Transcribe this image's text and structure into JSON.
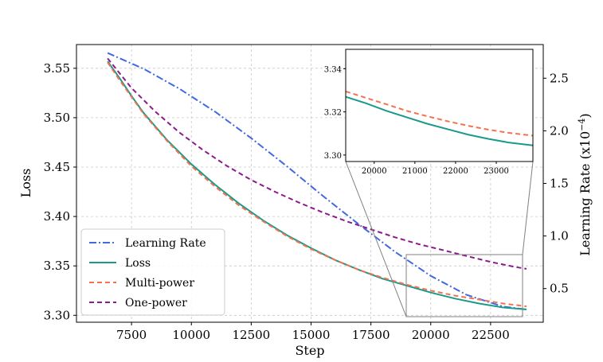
{
  "chart_data": {
    "type": "line",
    "xlabel": "Step",
    "ylabel": "Loss",
    "y2label": "Learning Rate (x10",
    "y2label_exp": "−4",
    "y2label_close": ")",
    "xlim": [
      5200,
      24700
    ],
    "ylim": [
      3.293,
      3.574
    ],
    "y2lim": [
      0.18,
      2.82
    ],
    "xticks": [
      7500,
      10000,
      12500,
      15000,
      17500,
      20000,
      22500
    ],
    "yticks": [
      3.3,
      3.35,
      3.4,
      3.45,
      3.5,
      3.55
    ],
    "y2ticks": [
      0.5,
      1.0,
      1.5,
      2.0,
      2.5
    ],
    "grid": true,
    "legend_position": "lower-left",
    "series": [
      {
        "name": "Learning Rate",
        "axis": "right",
        "color": "#4169e1",
        "style": "dashdot",
        "x": [
          6500,
          8000,
          9500,
          11000,
          12500,
          14000,
          15500,
          17000,
          18500,
          20000,
          21500,
          23000,
          24000
        ],
        "y": [
          2.74,
          2.59,
          2.4,
          2.18,
          1.93,
          1.66,
          1.38,
          1.11,
          0.85,
          0.62,
          0.44,
          0.33,
          0.3
        ]
      },
      {
        "name": "Loss",
        "axis": "left",
        "color": "#1a9a8a",
        "style": "solid",
        "x": [
          6500,
          7000,
          7500,
          8000,
          9000,
          10000,
          11000,
          12000,
          13000,
          14000,
          15000,
          16000,
          17000,
          18000,
          19000,
          20000,
          21000,
          22000,
          23000,
          24000
        ],
        "y": [
          3.557,
          3.54,
          3.522,
          3.505,
          3.477,
          3.453,
          3.432,
          3.413,
          3.396,
          3.381,
          3.368,
          3.356,
          3.346,
          3.337,
          3.33,
          3.323,
          3.317,
          3.312,
          3.308,
          3.306
        ]
      },
      {
        "name": "Multi-power",
        "axis": "left",
        "color": "#f4714f",
        "style": "dashed",
        "x": [
          6500,
          7000,
          7500,
          8000,
          9000,
          10000,
          11000,
          12000,
          13000,
          14000,
          15000,
          16000,
          17000,
          18000,
          19000,
          20000,
          21000,
          22000,
          23000,
          24000
        ],
        "y": [
          3.556,
          3.538,
          3.521,
          3.504,
          3.476,
          3.451,
          3.43,
          3.411,
          3.395,
          3.38,
          3.367,
          3.356,
          3.346,
          3.338,
          3.331,
          3.325,
          3.32,
          3.316,
          3.312,
          3.309
        ]
      },
      {
        "name": "One-power",
        "axis": "left",
        "color": "#8b1a8b",
        "style": "dashed",
        "x": [
          6500,
          7500,
          8500,
          9500,
          10500,
          11500,
          12500,
          13500,
          14500,
          15500,
          16500,
          17500,
          18500,
          19500,
          20500,
          21500,
          22500,
          23500,
          24000
        ],
        "y": [
          3.56,
          3.53,
          3.506,
          3.485,
          3.467,
          3.451,
          3.437,
          3.425,
          3.414,
          3.404,
          3.395,
          3.387,
          3.379,
          3.372,
          3.366,
          3.36,
          3.354,
          3.349,
          3.347
        ]
      }
    ],
    "inset": {
      "xlim": [
        19300,
        23900
      ],
      "ylim": [
        3.297,
        3.349
      ],
      "xticks": [
        20000,
        21000,
        22000,
        23000
      ],
      "yticks": [
        3.3,
        3.32,
        3.34
      ],
      "series": [
        {
          "name": "Loss",
          "color": "#1a9a8a",
          "style": "solid",
          "x": [
            19300,
            19800,
            20300,
            20800,
            21300,
            21800,
            22300,
            22800,
            23300,
            23900
          ],
          "y": [
            3.327,
            3.324,
            3.3205,
            3.3175,
            3.3145,
            3.312,
            3.3095,
            3.3075,
            3.3058,
            3.3045
          ]
        },
        {
          "name": "Multi-power",
          "color": "#f4714f",
          "style": "dashed",
          "x": [
            19300,
            19800,
            20300,
            20800,
            21300,
            21800,
            22300,
            22800,
            23300,
            23900
          ],
          "y": [
            3.3295,
            3.3265,
            3.3235,
            3.3205,
            3.318,
            3.3157,
            3.3136,
            3.3118,
            3.3103,
            3.309
          ]
        }
      ]
    }
  }
}
